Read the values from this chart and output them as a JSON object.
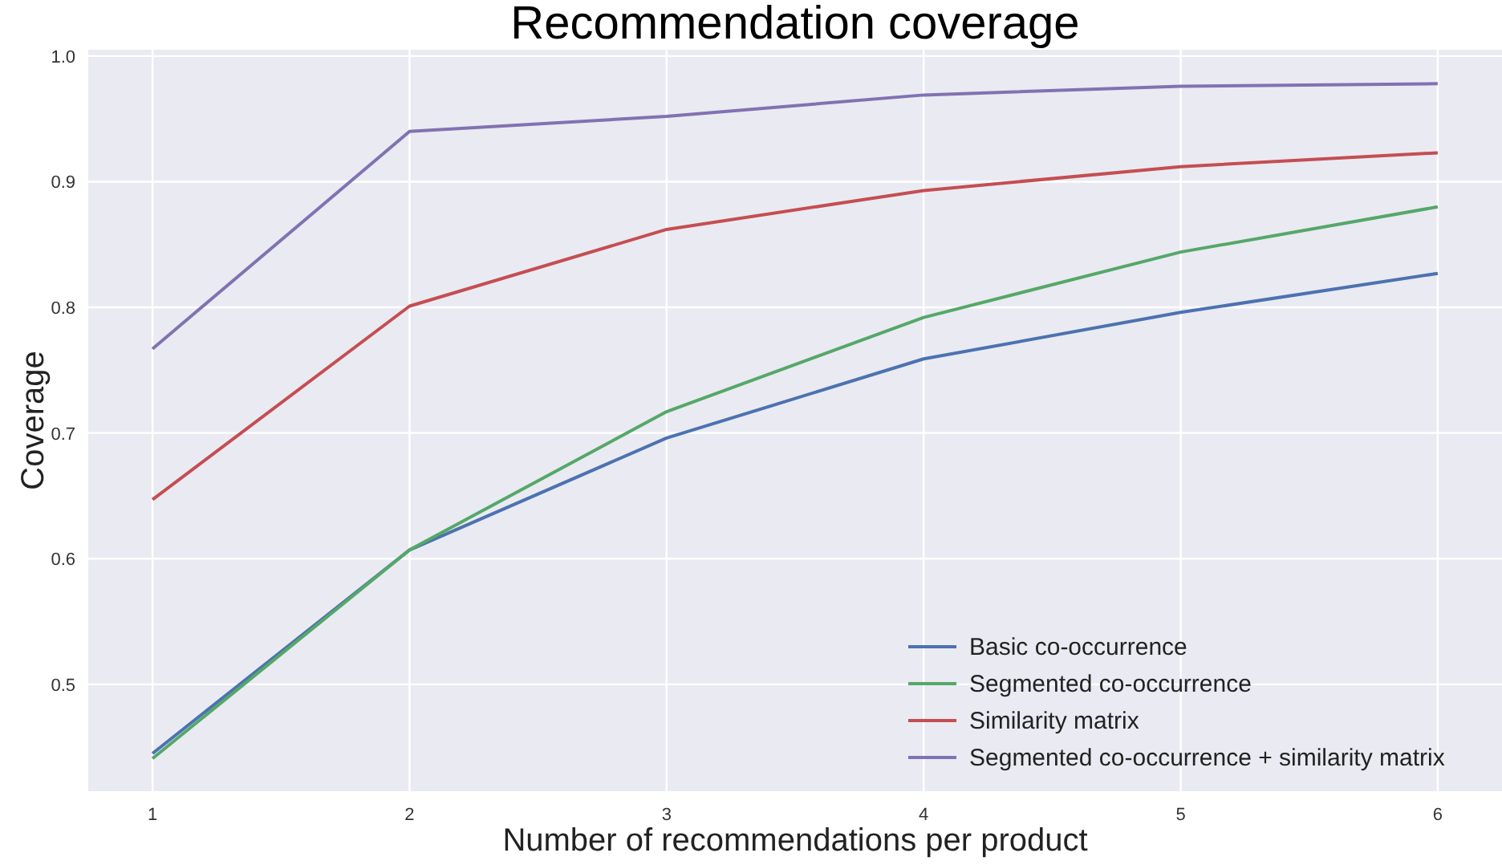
{
  "chart_data": {
    "type": "line",
    "title": "Recommendation coverage",
    "xlabel": "Number of recommendations per product",
    "ylabel": "Coverage",
    "x": [
      1,
      2,
      3,
      4,
      5,
      6
    ],
    "xlim": [
      0.75,
      6.25
    ],
    "xticks": [
      1,
      2,
      3,
      4,
      5,
      6
    ],
    "ylim": [
      0.415,
      1.005
    ],
    "yticks": [
      0.5,
      0.6,
      0.7,
      0.8,
      0.9,
      {
        "value": 1,
        "label": "1.0"
      }
    ],
    "grid": true,
    "legend": "bottom right",
    "marker": "none",
    "line_style": "solid",
    "series": [
      {
        "name": "Basic co-occurrence",
        "color": "#4c72b0",
        "values": [
          0.445,
          0.607,
          0.696,
          0.759,
          0.796,
          0.827
        ]
      },
      {
        "name": "Segmented co-occurrence",
        "color": "#55a868",
        "values": [
          0.441,
          0.607,
          0.717,
          0.792,
          0.844,
          0.88
        ]
      },
      {
        "name": "Similarity matrix",
        "color": "#c44e52",
        "values": [
          0.647,
          0.801,
          0.862,
          0.893,
          0.912,
          0.923
        ]
      },
      {
        "name": "Segmented co-occurrence + similarity matrix",
        "color": "#8172b2",
        "values": [
          0.767,
          0.94,
          0.952,
          0.969,
          0.976,
          0.978
        ]
      }
    ]
  }
}
